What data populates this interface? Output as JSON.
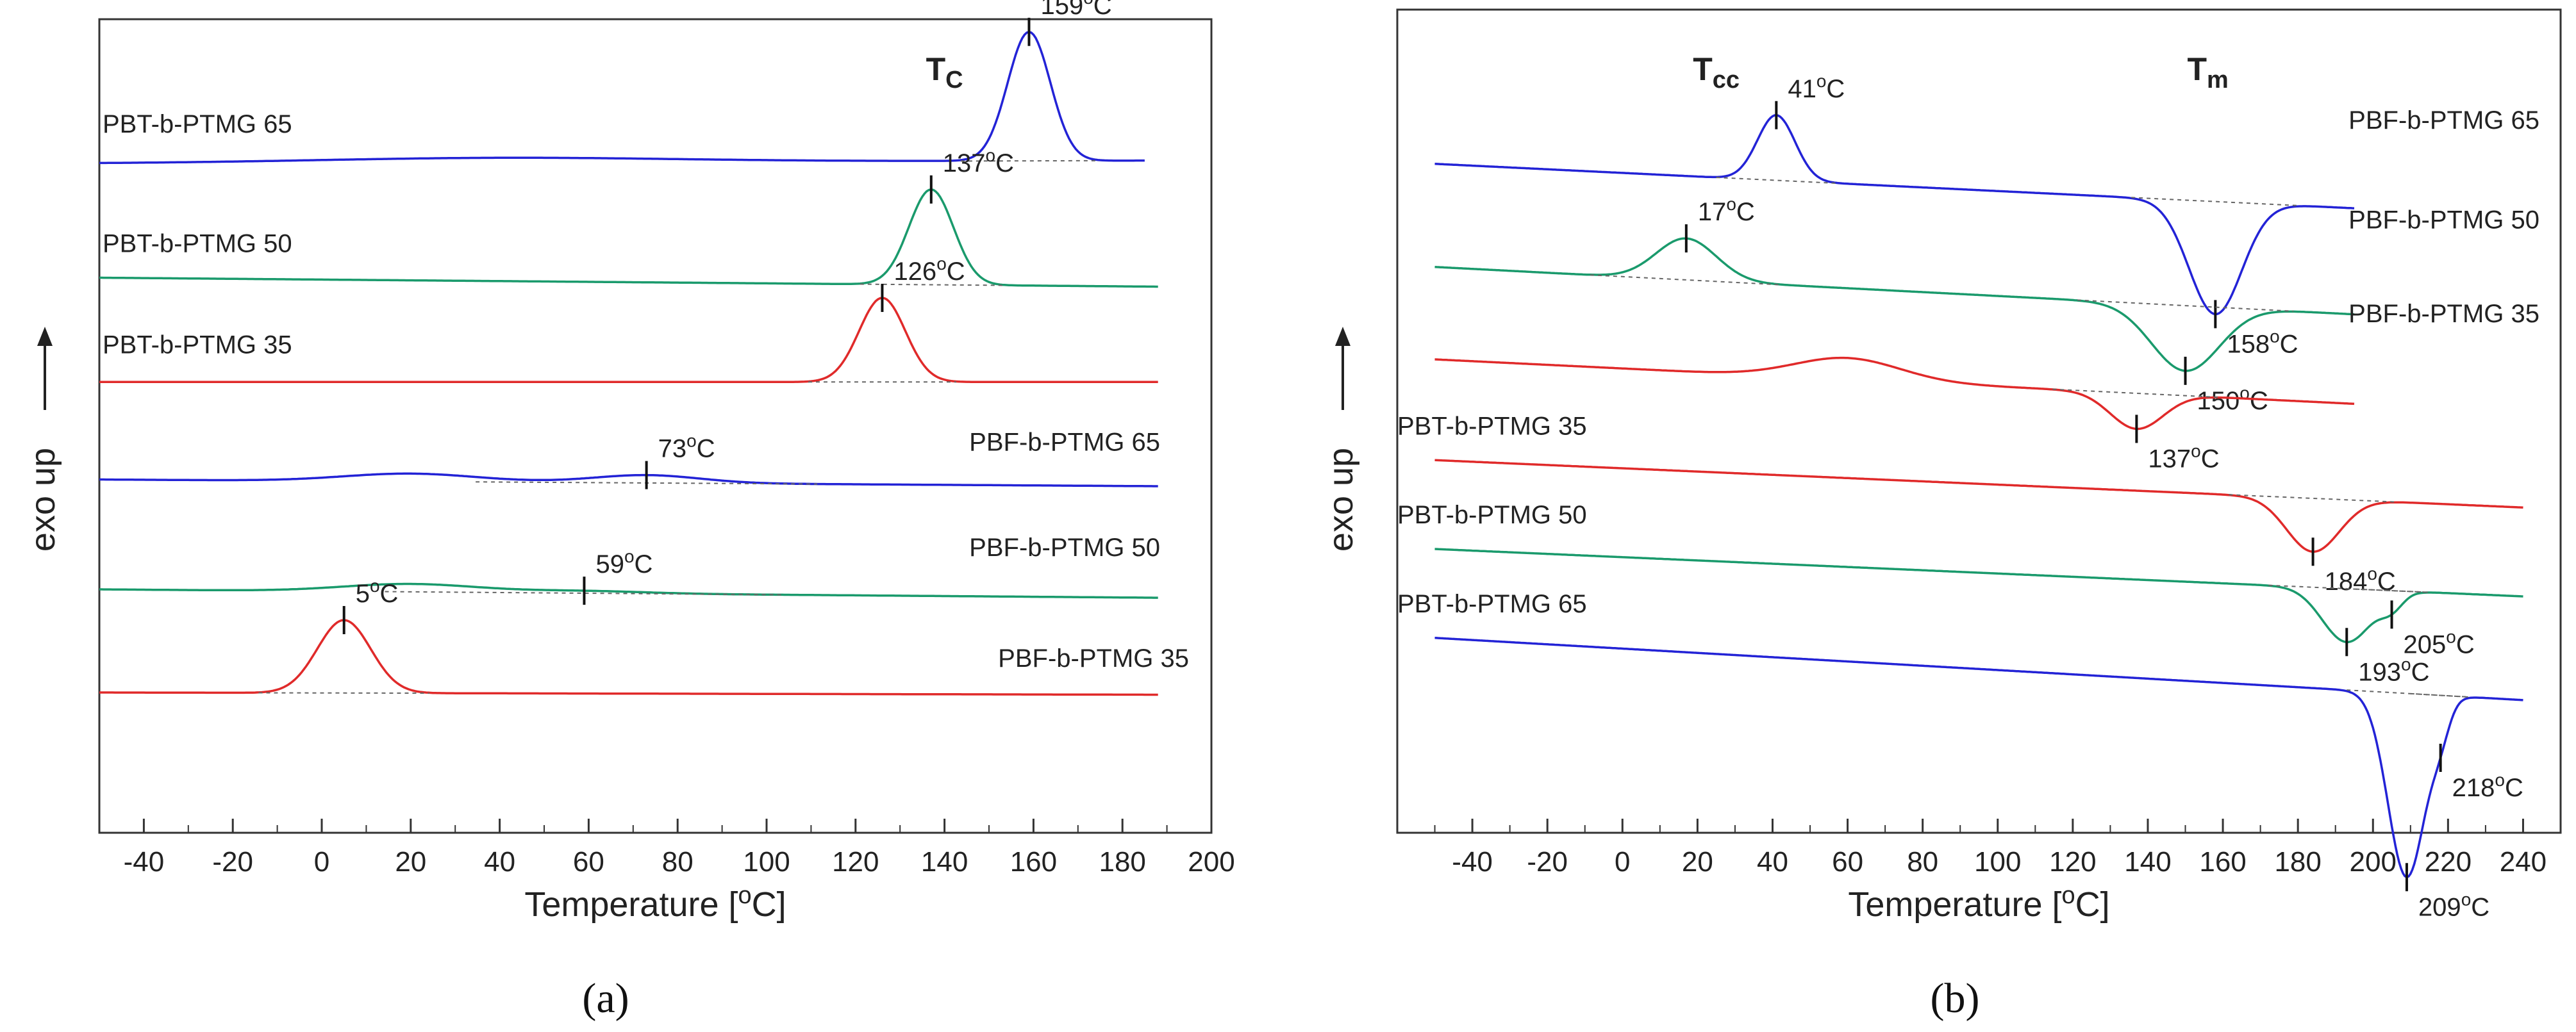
{
  "colors": {
    "blue": "#2323d6",
    "green": "#1a9a6c",
    "red": "#e02a2a",
    "base": "#666666"
  },
  "chart_data": [
    {
      "type": "line",
      "panel_label": "(a)",
      "xlabel": "Temperature [°C]",
      "xlabel_parts": {
        "pre": "Temperature [",
        "sup": "o",
        "post": "C]"
      },
      "ylabel": "exo up",
      "xlim": [
        -50,
        200
      ],
      "x_ticks": [
        -40,
        -20,
        0,
        20,
        40,
        60,
        80,
        100,
        120,
        140,
        160,
        180,
        200
      ],
      "region_labels": [
        {
          "main": "T",
          "sub": "C",
          "x": 140
        }
      ],
      "series": [
        {
          "name": "PBT-b-PTMG 65",
          "color": "blue",
          "baseline": 1.0,
          "tilt": -0.05,
          "bump": [
            40,
            0.04,
            40
          ],
          "peaks": [
            {
              "x": 159,
              "h": 1.15,
              "w": 4.8,
              "label_num": "159",
              "sign": 1
            }
          ]
        },
        {
          "name": "PBT-b-PTMG 50",
          "color": "green",
          "baseline": 2.02,
          "tilt": 0.16,
          "peaks": [
            {
              "x": 137,
              "h": 0.85,
              "w": 5.0,
              "label_num": "137",
              "sign": 1
            }
          ]
        },
        {
          "name": "PBT-b-PTMG 35",
          "color": "red",
          "baseline": 2.95,
          "tilt": 0.0,
          "peaks": [
            {
              "x": 126,
              "h": 0.75,
              "w": 5.2,
              "label_num": "126",
              "sign": 1
            }
          ]
        },
        {
          "name": "PBF-b-PTMG 65",
          "color": "blue",
          "baseline": 3.82,
          "tilt": 0.12,
          "bump": [
            20,
            0.07,
            15
          ],
          "peaks": [
            {
              "x": 73,
              "h": 0.07,
              "w": 12,
              "label_num": "73",
              "sign": 1
            }
          ]
        },
        {
          "name": "PBF-b-PTMG 50",
          "color": "green",
          "baseline": 4.8,
          "tilt": 0.15,
          "bump": [
            20,
            0.07,
            15
          ],
          "peaks": [
            {
              "x": 59,
              "h": 0.02,
              "w": 14,
              "label_num": "59",
              "sign": 1
            }
          ]
        },
        {
          "name": "PBF-b-PTMG 35",
          "color": "red",
          "baseline": 5.72,
          "tilt": 0.04,
          "peaks": [
            {
              "x": 5,
              "h": 0.65,
              "w": 6.0,
              "label_num": "5",
              "sign": 1
            }
          ]
        }
      ]
    },
    {
      "type": "line",
      "panel_label": "(b)",
      "xlabel": "Temperature [°C]",
      "xlabel_parts": {
        "pre": "Temperature [",
        "sup": "o",
        "post": "C]"
      },
      "ylabel": "exo up",
      "xlim": [
        -60,
        250
      ],
      "x_ticks": [
        -40,
        -20,
        0,
        20,
        40,
        60,
        80,
        100,
        120,
        140,
        160,
        180,
        200,
        220,
        240
      ],
      "region_labels": [
        {
          "main": "T",
          "sub": "cc",
          "x": 25
        },
        {
          "main": "T",
          "sub": "m",
          "x": 156
        }
      ],
      "series": [
        {
          "name": "PBF-b-PTMG 65",
          "color": "blue",
          "baseline": 0.95,
          "tilt": 0.75,
          "peaks": [
            {
              "x": 41,
              "h": 0.55,
              "w": 5.0,
              "label_num": "41",
              "sign": 1
            },
            {
              "x": 158,
              "h": 0.95,
              "w": 7.0,
              "label_num": "158",
              "sign": -1
            }
          ]
        },
        {
          "name": "PBF-b-PTMG 50",
          "color": "green",
          "baseline": 1.82,
          "tilt": 0.8,
          "peaks": [
            {
              "x": 17,
              "h": 0.35,
              "w": 8.0,
              "label_num": "17",
              "sign": 1
            },
            {
              "x": 150,
              "h": 0.55,
              "w": 9.0,
              "label_num": "150",
              "sign": -1
            }
          ]
        },
        {
          "name": "PBF-b-PTMG 35",
          "color": "red",
          "baseline": 2.6,
          "tilt": 0.75,
          "bump": [
            60,
            0.18,
            14
          ],
          "peaks": [
            {
              "x": 137,
              "h": 0.3,
              "w": 7.0,
              "label_num": "137",
              "sign": -1
            }
          ]
        },
        {
          "name": "PBT-b-PTMG 35",
          "color": "red",
          "baseline": 3.45,
          "tilt": 0.8,
          "peaks": [
            {
              "x": 184,
              "h": 0.45,
              "w": 7.0,
              "label_num": "184",
              "sign": -1
            }
          ]
        },
        {
          "name": "PBT-b-PTMG 50",
          "color": "green",
          "baseline": 4.2,
          "tilt": 0.8,
          "peaks": [
            {
              "x": 193,
              "h": 0.45,
              "w": 6.5,
              "label_num": "193",
              "sign": -1
            },
            {
              "x": 205,
              "h": 0.12,
              "w": 3.0,
              "label_num": "205",
              "sign": -1
            }
          ]
        },
        {
          "name": "PBT-b-PTMG 65",
          "color": "blue",
          "baseline": 4.95,
          "tilt": 1.05,
          "peaks": [
            {
              "x": 209,
              "h": 1.55,
              "w": 5.0,
              "label_num": "209",
              "sign": -1
            },
            {
              "x": 218,
              "h": 0.22,
              "w": 2.5,
              "label_num": "218",
              "sign": -1
            }
          ]
        }
      ]
    }
  ]
}
